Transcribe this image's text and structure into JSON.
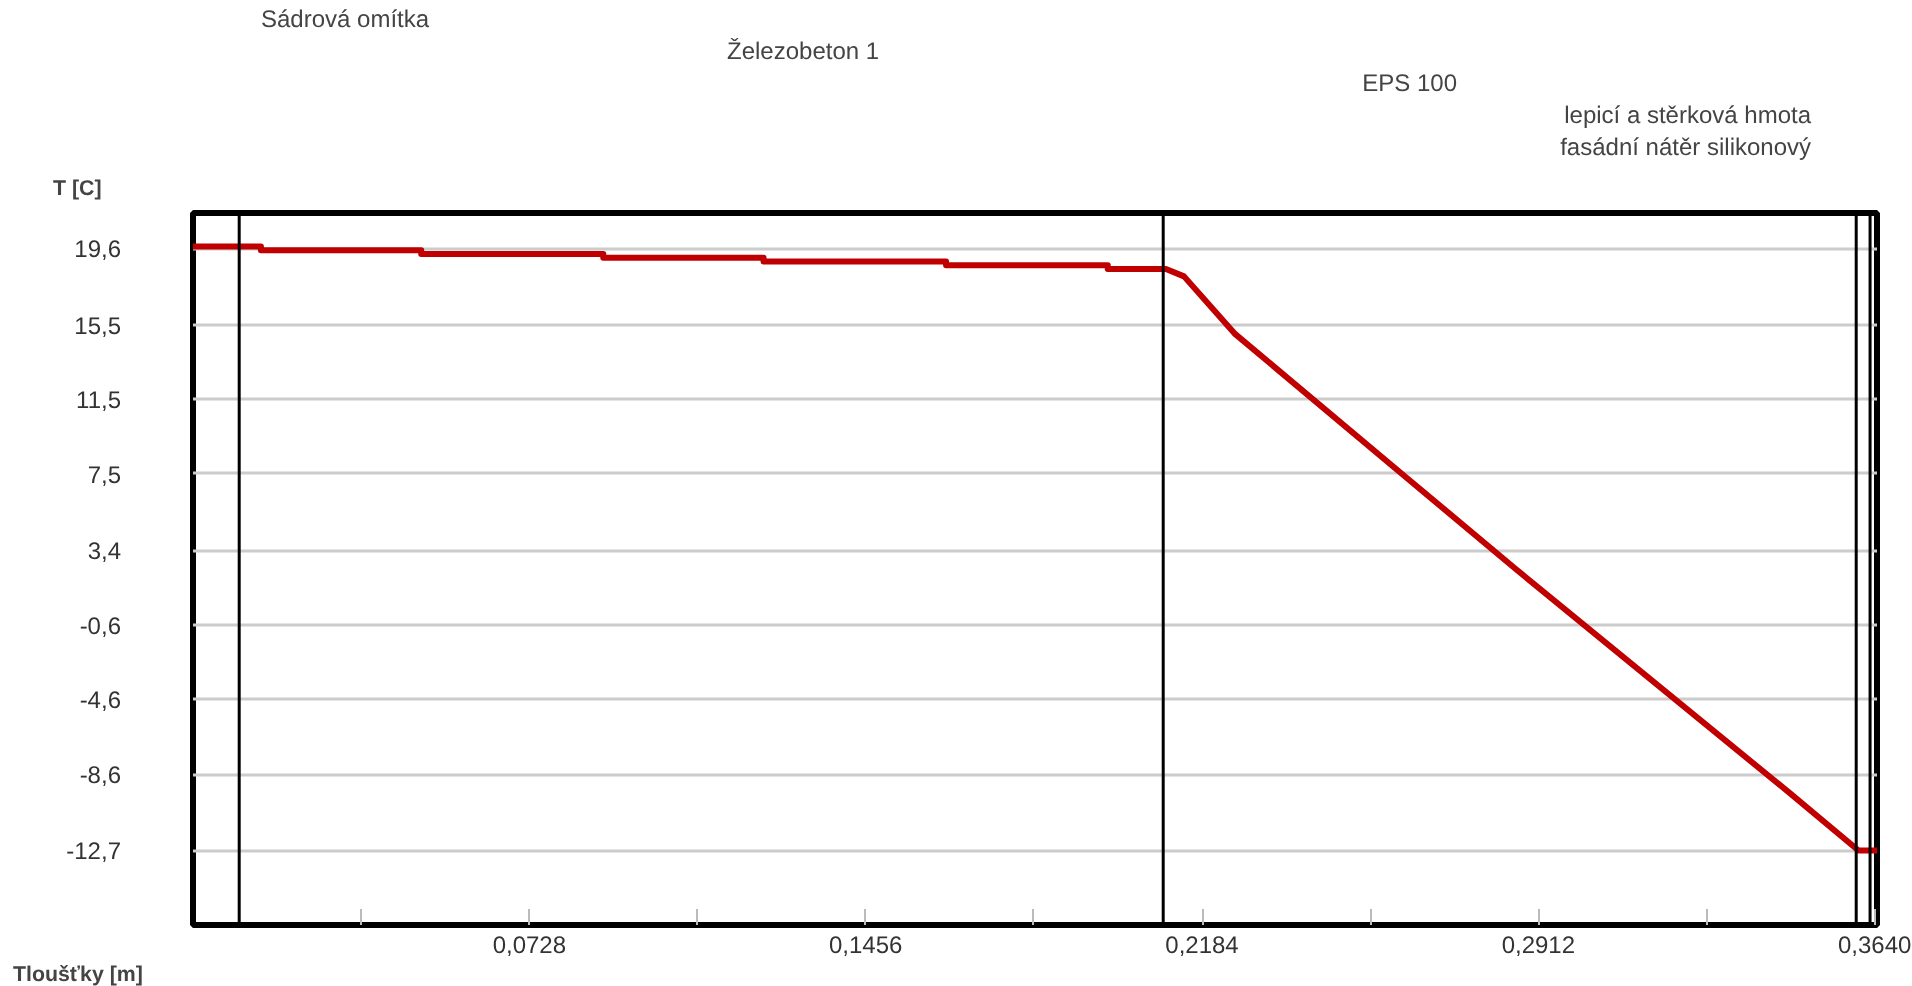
{
  "chart_data": {
    "type": "line",
    "xlabel": "Tloušťky [m]",
    "ylabel": "T [C]",
    "xlim": [
      0,
      0.3645
    ],
    "ylim": [
      -16.7,
      21.5
    ],
    "xticks": [
      {
        "value": 0.0364,
        "label": null
      },
      {
        "value": 0.0728,
        "label": "0,0728"
      },
      {
        "value": 0.1092,
        "label": null
      },
      {
        "value": 0.1456,
        "label": "0,1456"
      },
      {
        "value": 0.182,
        "label": null
      },
      {
        "value": 0.2184,
        "label": "0,2184"
      },
      {
        "value": 0.2548,
        "label": null
      },
      {
        "value": 0.2912,
        "label": "0,2912"
      },
      {
        "value": 0.3276,
        "label": null
      },
      {
        "value": 0.364,
        "label": "0,3640"
      }
    ],
    "yticks": [
      {
        "value": 19.6,
        "label": "19,6"
      },
      {
        "value": 15.5,
        "label": "15,5"
      },
      {
        "value": 11.5,
        "label": "11,5"
      },
      {
        "value": 7.5,
        "label": "7,5"
      },
      {
        "value": 3.4,
        "label": "3,4"
      },
      {
        "value": -0.6,
        "label": "-0,6"
      },
      {
        "value": -4.6,
        "label": "-4,6"
      },
      {
        "value": -8.6,
        "label": "-8,6"
      },
      {
        "value": -12.7,
        "label": "-12,7"
      }
    ],
    "grid": "y",
    "marker": "none",
    "line_style": "solid",
    "series": [
      {
        "color": "#c00000",
        "x": [
          0,
          0.0147,
          0.0147,
          0.0494,
          0.0494,
          0.0888,
          0.0888,
          0.1235,
          0.1235,
          0.163,
          0.163,
          0.198,
          0.198,
          0.2106,
          0.2145,
          0.2256,
          0.2617,
          0.2863,
          0.3455,
          0.3605,
          0.3645
        ],
        "values": [
          19.7,
          19.7,
          19.5,
          19.5,
          19.3,
          19.3,
          19.1,
          19.1,
          18.9,
          18.9,
          18.7,
          18.7,
          18.5,
          18.5,
          18.1,
          15.0,
          7.5,
          2.4,
          -9.6,
          -12.7,
          -12.7
        ]
      }
    ],
    "ref_lines": [
      {
        "axis": "x",
        "value": 0.01,
        "color": "#000000"
      },
      {
        "axis": "x",
        "value": 0.21,
        "color": "#000000"
      },
      {
        "axis": "x",
        "value": 0.36,
        "color": "#000000"
      },
      {
        "axis": "x",
        "value": 0.363,
        "color": "#000000"
      }
    ],
    "annotations": [
      "Sádrová omítka",
      "Železobeton 1",
      "EPS 100",
      "lepicí a stěrková hmota",
      "fasádní nátěr silikonový"
    ]
  }
}
